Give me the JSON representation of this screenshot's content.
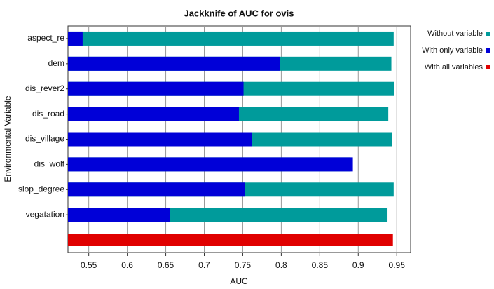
{
  "chart_data": {
    "type": "bar",
    "orientation": "horizontal",
    "title": "Jackknife of AUC for ovis",
    "x_label": "AUC",
    "y_label": "Environmental Variable",
    "categories": [
      "aspect_re",
      "dem",
      "dis_rever2",
      "dis_road",
      "dis_village",
      "dis_wolf",
      "slop_degree",
      "vegatation",
      null
    ],
    "series": [
      {
        "name": "Without variable",
        "color": "#009b9b",
        "values": [
          0.946,
          0.943,
          0.947,
          0.939,
          0.944,
          0.89,
          0.946,
          0.938,
          null
        ]
      },
      {
        "name": "With only variable",
        "color": "#0000d8",
        "values": [
          0.542,
          0.798,
          0.751,
          0.745,
          0.762,
          0.893,
          0.753,
          0.655,
          null
        ]
      },
      {
        "name": "With all variables",
        "color": "#e00000",
        "values": [
          null,
          null,
          null,
          null,
          null,
          null,
          null,
          null,
          0.945
        ]
      }
    ],
    "xlim": [
      0.523,
      0.968
    ],
    "xticks": [
      0.55,
      0.6,
      0.65,
      0.7,
      0.75,
      0.8,
      0.85,
      0.9,
      0.95
    ],
    "grid": true,
    "legend": "right"
  }
}
